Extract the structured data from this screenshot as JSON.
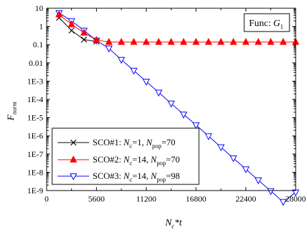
{
  "chart_data": {
    "type": "line",
    "xscale": "linear",
    "yscale": "log",
    "xlim": [
      0,
      28000
    ],
    "ylim": [
      1e-09,
      10
    ],
    "xticks": [
      0,
      5600,
      11200,
      16800,
      22400,
      28000
    ],
    "xtick_labels": [
      "0",
      "5600",
      "11200",
      "16800",
      "22400",
      "28000"
    ],
    "yticks": [
      1e-09,
      1e-08,
      1e-07,
      1e-06,
      1e-05,
      0.0001,
      0.001,
      0.01,
      0.1,
      1,
      10
    ],
    "ytick_labels": [
      "1E-9",
      "1E-8",
      "1E-7",
      "1E-6",
      "1E-5",
      "1E-4",
      "1E-3",
      "0.01",
      "0.1",
      "1",
      "10"
    ],
    "xlabel": {
      "main": "N",
      "sub": "c",
      "rest": "*t"
    },
    "ylabel": {
      "main": "F",
      "sub": "norm"
    },
    "annotation": {
      "prefix": "Func: ",
      "main": "G",
      "sub": "1"
    },
    "legend": {
      "placement": "bottom-left",
      "entries": [
        {
          "prefix": "SCO#1: ",
          "n1": "N",
          "s1": "c",
          "v1": "=1, ",
          "n2": "N",
          "s2": "pop",
          "v2": "=70"
        },
        {
          "prefix": "SCO#2: ",
          "n1": "N",
          "s1": "c",
          "v1": "=14, ",
          "n2": "N",
          "s2": "pop",
          "v2": "=70"
        },
        {
          "prefix": "SCO#3: ",
          "n1": "N",
          "s1": "c",
          "v1": "=14, ",
          "n2": "N",
          "s2": "pop",
          "v2": "=98"
        }
      ]
    },
    "series": [
      {
        "marker": "x",
        "color": "#000000",
        "x": [
          1400,
          2800,
          4200,
          5600
        ],
        "y": [
          3.0,
          0.6,
          0.19,
          0.15
        ]
      },
      {
        "marker": "triangle-up",
        "color": "#ff0000",
        "x": [
          1400,
          2800,
          4200,
          5600,
          7000,
          8400,
          9800,
          11200,
          12600,
          14000,
          15400,
          16800,
          18200,
          19600,
          21000,
          22400,
          23800,
          25200,
          26600,
          28000
        ],
        "y": [
          4.5,
          1.3,
          0.45,
          0.18,
          0.14,
          0.14,
          0.14,
          0.14,
          0.14,
          0.14,
          0.14,
          0.14,
          0.14,
          0.14,
          0.14,
          0.14,
          0.14,
          0.14,
          0.14,
          0.14
        ]
      },
      {
        "marker": "triangle-down",
        "color": "#0000ff",
        "x": [
          1400,
          2800,
          4200,
          5600,
          7000,
          8400,
          9800,
          11200,
          12600,
          14000,
          15400,
          16800,
          18200,
          19600,
          21000,
          22400,
          23800,
          25200,
          26600,
          28000
        ],
        "y": [
          5.5,
          2.0,
          0.6,
          0.17,
          0.063,
          0.015,
          0.0038,
          0.00095,
          0.00024,
          6e-05,
          1.5e-05,
          3.9e-06,
          9.7e-07,
          2.4e-07,
          6e-08,
          1.5e-08,
          3.7e-09,
          9.5e-10,
          2.4e-10,
          8e-10
        ]
      }
    ]
  }
}
